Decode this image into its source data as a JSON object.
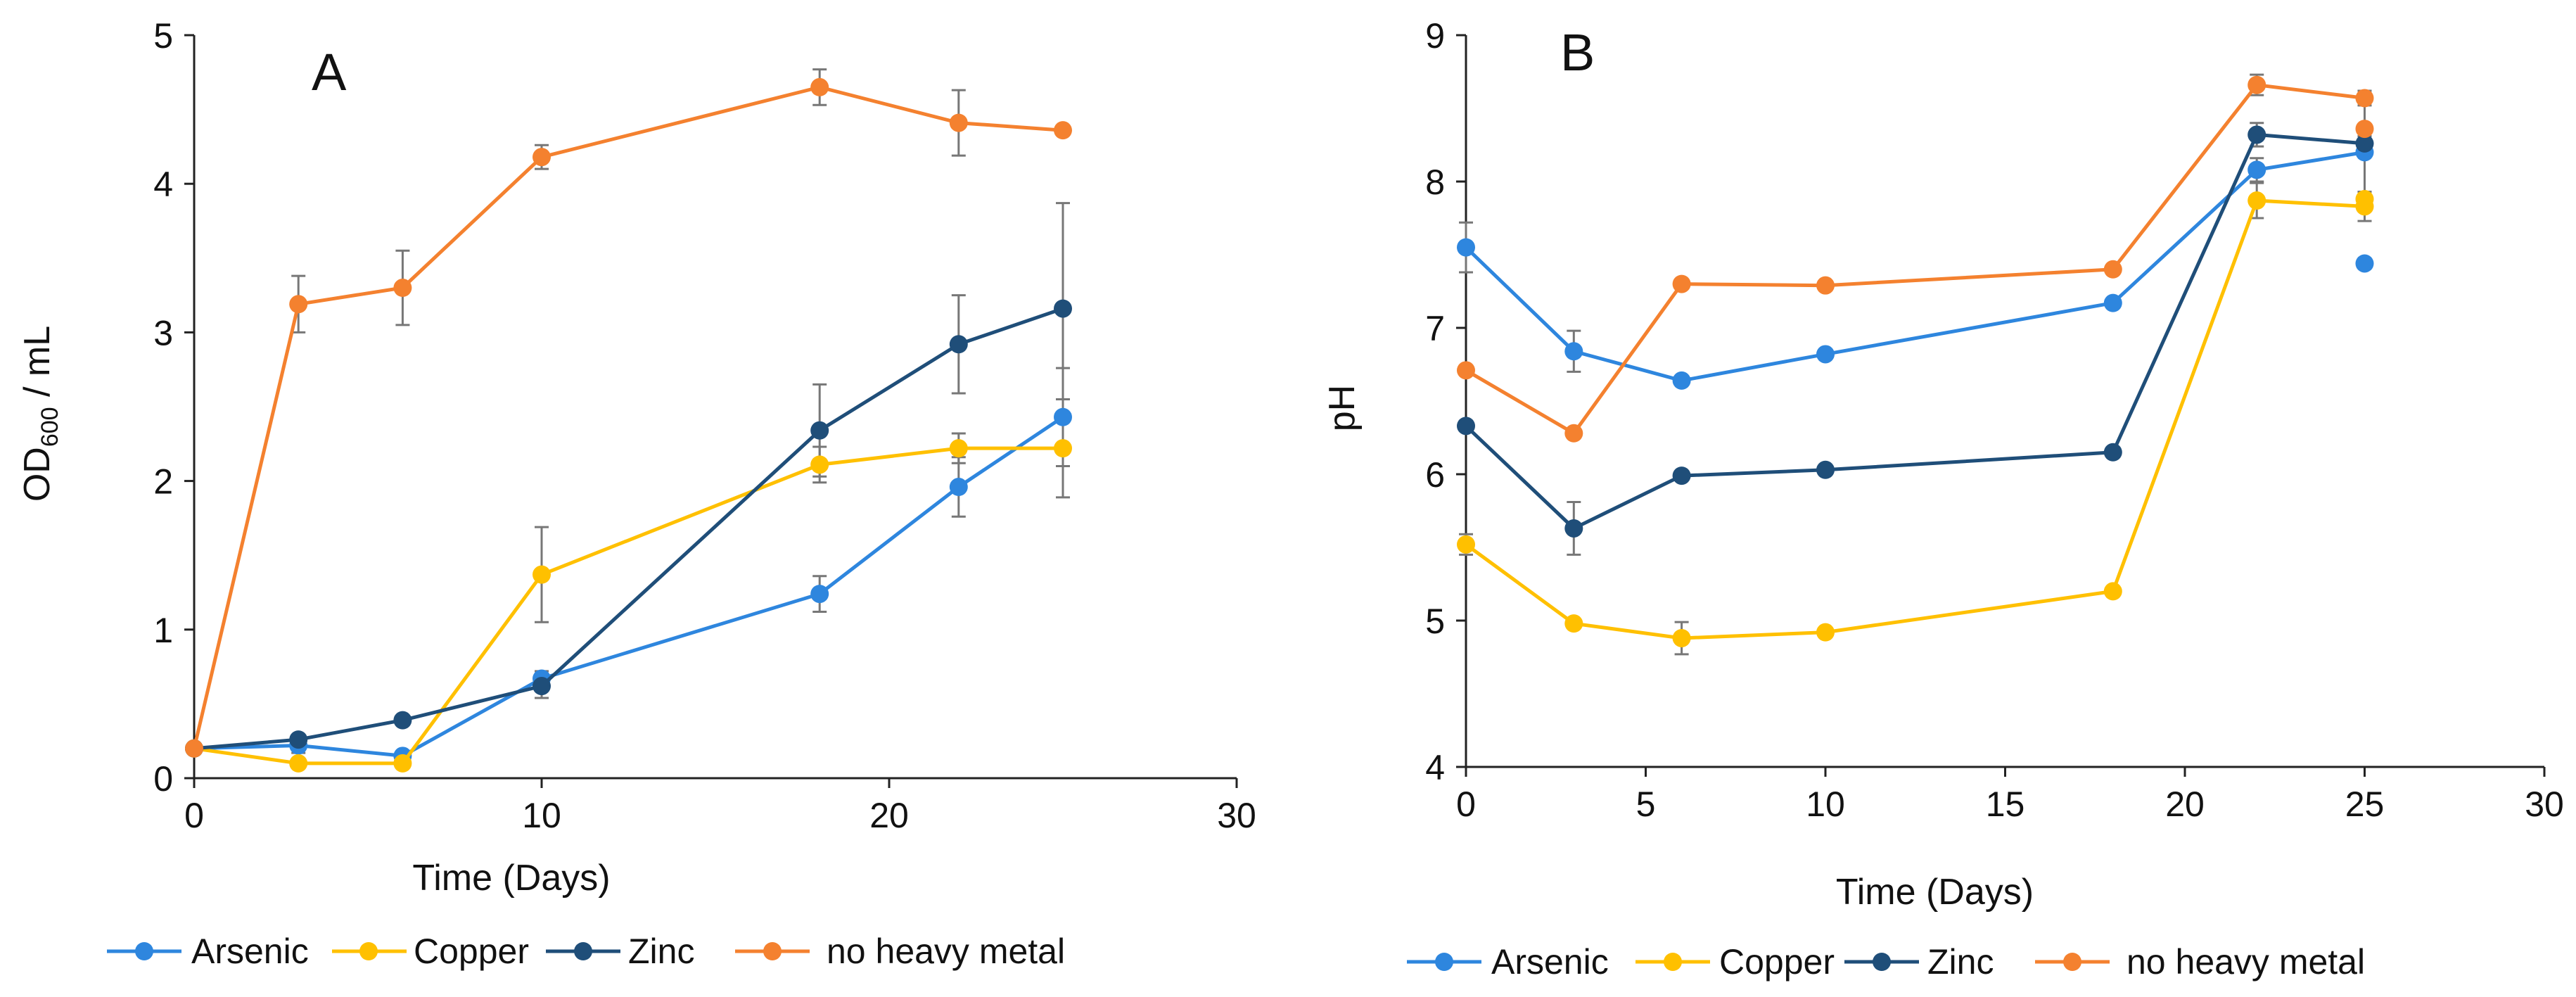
{
  "chart_data": [
    {
      "type": "line",
      "panel_label": "A",
      "xlabel": "Time (Days)",
      "ylabel": {
        "pre": "OD",
        "sub": "600",
        "post": " / mL"
      },
      "xlim": [
        0,
        30
      ],
      "ylim": [
        0,
        5
      ],
      "xticks": [
        "0",
        "10",
        "20",
        "30"
      ],
      "yticks": [
        "0",
        "1",
        "2",
        "3",
        "4",
        "5"
      ],
      "grid": false,
      "legend_position": "bottom",
      "series": [
        {
          "name": "Arsenic",
          "color": "#2E86DE",
          "x": [
            0,
            3,
            6,
            10,
            18,
            22,
            25
          ],
          "y": [
            0.2,
            0.22,
            0.15,
            0.67,
            1.24,
            1.96,
            2.43
          ],
          "err": [
            0,
            0.05,
            0.03,
            0.05,
            0.12,
            0.2,
            0.33
          ]
        },
        {
          "name": "Copper",
          "color": "#FFC000",
          "x": [
            0,
            3,
            6,
            10,
            18,
            22,
            25
          ],
          "y": [
            0.2,
            0.1,
            0.1,
            1.37,
            2.11,
            2.22,
            2.22
          ],
          "err": [
            0,
            0.03,
            0.03,
            0.32,
            0.12,
            0.1,
            0.33
          ]
        },
        {
          "name": "Zinc",
          "color": "#1F4E79",
          "x": [
            0,
            3,
            6,
            10,
            18,
            22,
            25
          ],
          "y": [
            0.2,
            0.26,
            0.39,
            0.62,
            2.34,
            2.92,
            3.16
          ],
          "err": [
            0,
            0.03,
            0.03,
            0.08,
            0.31,
            0.33,
            0.71
          ]
        },
        {
          "name": "no heavy metal",
          "color": "#F4812F",
          "x": [
            0,
            3,
            6,
            10,
            18,
            22,
            25
          ],
          "y": [
            0.2,
            3.19,
            3.3,
            4.18,
            4.65,
            4.41,
            4.36
          ],
          "err": [
            0,
            0.19,
            0.25,
            0.08,
            0.12,
            0.22,
            0
          ]
        }
      ]
    },
    {
      "type": "line",
      "panel_label": "B",
      "xlabel": "Time (Days)",
      "ylabel": {
        "pre": "pH",
        "sub": "",
        "post": ""
      },
      "xlim": [
        0,
        30
      ],
      "ylim": [
        4,
        9
      ],
      "xticks": [
        "0",
        "5",
        "10",
        "15",
        "20",
        "25",
        "30"
      ],
      "yticks": [
        "4",
        "5",
        "6",
        "7",
        "8",
        "9"
      ],
      "grid": false,
      "legend_position": "bottom",
      "series": [
        {
          "name": "Arsenic",
          "color": "#2E86DE",
          "x": [
            0,
            3,
            6,
            10,
            18,
            22,
            25
          ],
          "y": [
            7.55,
            6.84,
            6.64,
            6.82,
            7.17,
            8.08,
            8.2
          ],
          "err": [
            0.17,
            0.14,
            0,
            0,
            0,
            0.08,
            0.4
          ]
        },
        {
          "name": "Copper",
          "color": "#FFC000",
          "x": [
            0,
            3,
            6,
            10,
            18,
            22,
            25
          ],
          "y": [
            5.52,
            4.98,
            4.88,
            4.92,
            5.2,
            7.87,
            7.83
          ],
          "err": [
            0.07,
            0,
            0.11,
            0,
            0,
            0.12,
            0.1
          ]
        },
        {
          "name": "Zinc",
          "color": "#1F4E79",
          "x": [
            0,
            3,
            6,
            10,
            18,
            22,
            25
          ],
          "y": [
            6.33,
            5.63,
            5.99,
            6.03,
            6.15,
            8.32,
            8.26
          ],
          "err": [
            0,
            0.18,
            0,
            0,
            0,
            0.08,
            0.05
          ]
        },
        {
          "name": "no heavy metal",
          "color": "#F4812F",
          "x": [
            0,
            3,
            6,
            10,
            18,
            22,
            25
          ],
          "y": [
            6.71,
            6.28,
            7.3,
            7.29,
            7.4,
            8.66,
            8.57
          ],
          "err": [
            0,
            0,
            0,
            0,
            0,
            0.07,
            0.05
          ]
        }
      ],
      "extra_points": [
        {
          "series": "Arsenic",
          "x": 25,
          "y": 7.44
        },
        {
          "series": "Copper",
          "x": 25,
          "y": 7.88
        },
        {
          "series": "no heavy metal",
          "x": 25,
          "y": 8.36
        }
      ]
    }
  ]
}
